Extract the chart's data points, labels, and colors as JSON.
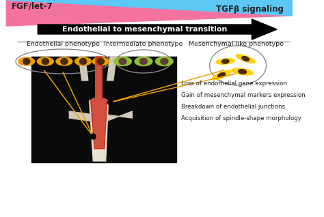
{
  "title": "Endothelial to mesenchymal transition",
  "fgf_label": "FGF/let-7",
  "tgf_label": "TGFβ signaling",
  "phenotype_labels": [
    "Endothelial phenotype",
    "Intermediate phenotype",
    "Mesenchymal-like phenotype"
  ],
  "bullet_points": [
    "Loss of endothelial gene expression",
    "Gain of mesenchymal markers expression",
    "Breakdown of endothelial junctions",
    "Acquisition of spindle-shape morphology"
  ],
  "pink_color": "#F472A0",
  "blue_color": "#5BC8F5",
  "bg_color": "#FFFFFF"
}
